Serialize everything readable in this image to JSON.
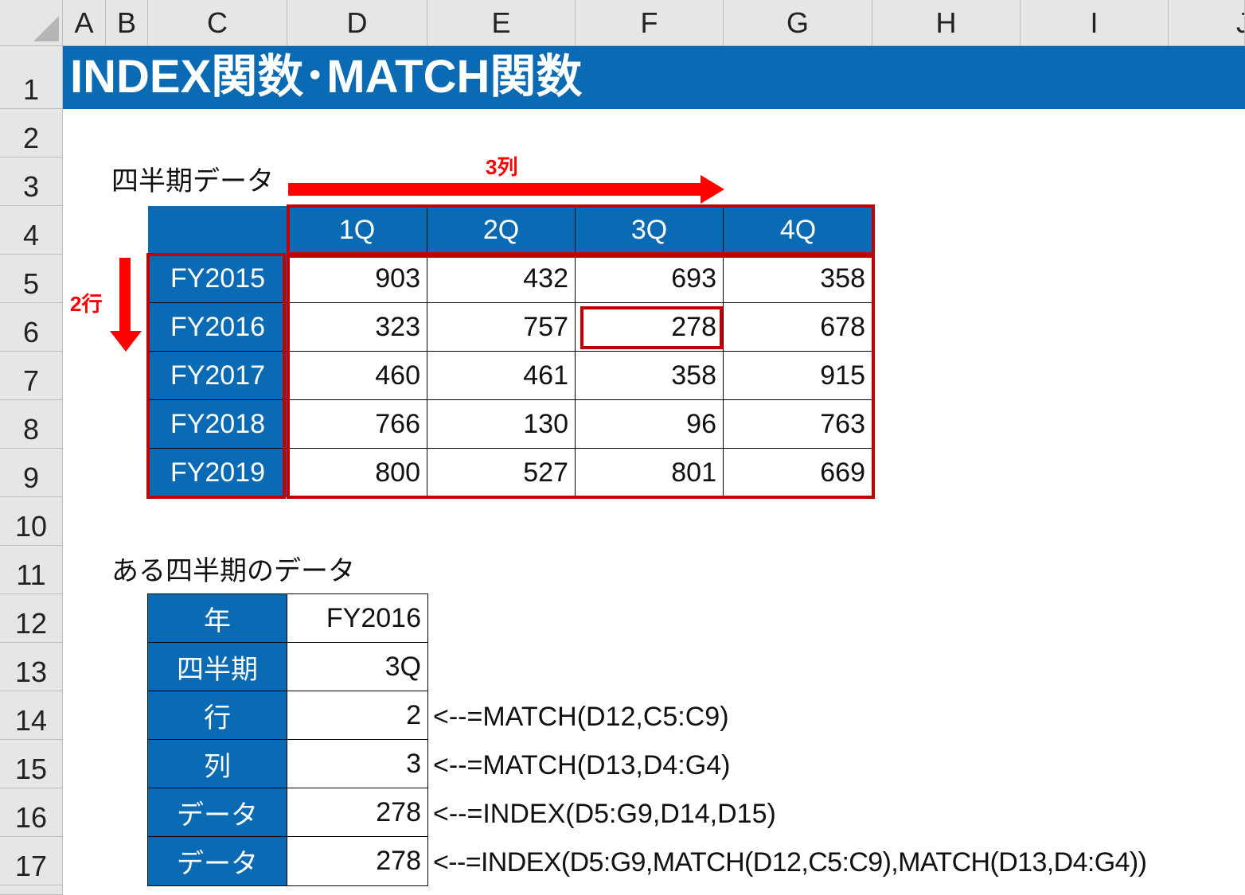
{
  "columns": [
    "A",
    "B",
    "C",
    "D",
    "E",
    "F",
    "G",
    "H",
    "I",
    "J"
  ],
  "rows": [
    "1",
    "2",
    "3",
    "4",
    "5",
    "6",
    "7",
    "8",
    "9",
    "10",
    "11",
    "12",
    "13",
    "14",
    "15",
    "16",
    "17"
  ],
  "title": "INDEX関数･MATCH関数",
  "section1": {
    "label": "四半期データ",
    "quarters": [
      "1Q",
      "2Q",
      "3Q",
      "4Q"
    ],
    "years": [
      "FY2015",
      "FY2016",
      "FY2017",
      "FY2018",
      "FY2019"
    ],
    "values": [
      [
        903,
        432,
        693,
        358
      ],
      [
        323,
        757,
        278,
        678
      ],
      [
        460,
        461,
        358,
        915
      ],
      [
        766,
        130,
        96,
        763
      ],
      [
        800,
        527,
        801,
        669
      ]
    ],
    "col_arrow_label": "3列",
    "row_arrow_label": "2行"
  },
  "section2": {
    "label": "ある四半期のデータ",
    "rows": [
      {
        "label": "年",
        "value": "FY2016",
        "formula": ""
      },
      {
        "label": "四半期",
        "value": "3Q",
        "formula": ""
      },
      {
        "label": "行",
        "value": "2",
        "formula": "<--=MATCH(D12,C5:C9)"
      },
      {
        "label": "列",
        "value": "3",
        "formula": "<--=MATCH(D13,D4:G4)"
      },
      {
        "label": "データ",
        "value": "278",
        "formula": "<--=INDEX(D5:G9,D14,D15)"
      },
      {
        "label": "データ",
        "value": "278",
        "formula": "<--=INDEX(D5:G9,MATCH(D12,C5:C9),MATCH(D13,D4:G4))"
      }
    ]
  },
  "colors": {
    "header_blue": "#0a6ab3",
    "highlight_red": "#c00000",
    "arrow_red": "#ff0000"
  }
}
